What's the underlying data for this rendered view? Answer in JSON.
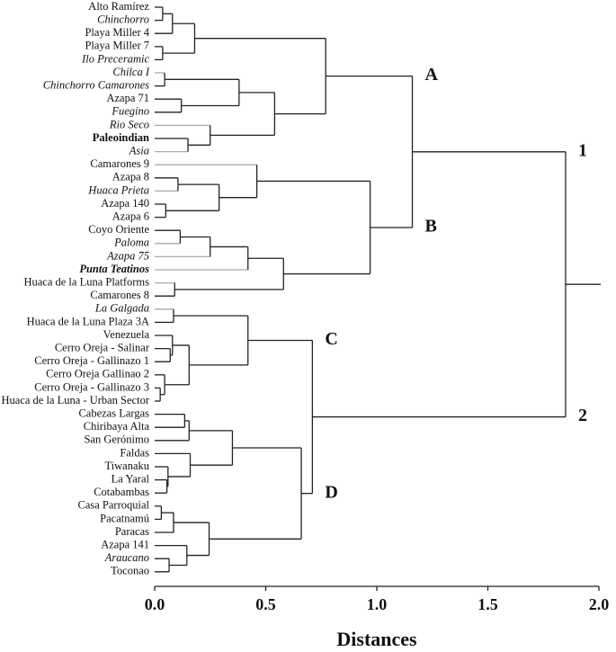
{
  "chart_data": {
    "type": "dendrogram",
    "xlabel": "Distances",
    "xlim": [
      0,
      2
    ],
    "xticks": [
      {
        "value": 0,
        "label": "0.0"
      },
      {
        "value": 0.5,
        "label": "0.5"
      },
      {
        "value": 1,
        "label": "1.0"
      },
      {
        "value": 1.5,
        "label": "1.5"
      },
      {
        "value": 2,
        "label": "2.0"
      }
    ],
    "line_color": "#222",
    "light_line_color": "#aaa",
    "tree": {
      "height": 1.85,
      "children": [
        {
          "cluster": "1",
          "height": 1.16,
          "children": [
            {
              "cluster": "A",
              "height": 0.77,
              "children": [
                {
                  "height": 0.18,
                  "children": [
                    {
                      "height": 0.08,
                      "children": [
                        {
                          "height": 0.036,
                          "children": [
                            {
                              "label": "Alto Ramírez"
                            },
                            {
                              "label": "Chinchorro",
                              "italic": true
                            }
                          ]
                        },
                        {
                          "label": "Playa Miller 4"
                        }
                      ]
                    },
                    {
                      "height": 0.036,
                      "children": [
                        {
                          "label": "Playa Miller 7"
                        },
                        {
                          "label": "Ilo Preceramic",
                          "italic": true
                        }
                      ]
                    }
                  ]
                },
                {
                  "height": 0.54,
                  "children": [
                    {
                      "height": 0.38,
                      "children": [
                        {
                          "height": 0.045,
                          "children": [
                            {
                              "label": "Chilca I",
                              "italic": true,
                              "gray": true
                            },
                            {
                              "label": "Chinchorro Camarones",
                              "italic": true
                            }
                          ]
                        },
                        {
                          "height": 0.12,
                          "children": [
                            {
                              "label": "Azapa 71"
                            },
                            {
                              "label": "Fuegino",
                              "italic": true
                            }
                          ]
                        }
                      ]
                    },
                    {
                      "height": 0.25,
                      "children": [
                        {
                          "label": "Rio Seco",
                          "italic": true,
                          "gray": true
                        },
                        {
                          "height": 0.15,
                          "children": [
                            {
                              "label": "Paleoindian",
                              "bold": true
                            },
                            {
                              "label": "Asia",
                              "italic": true,
                              "gray": true
                            }
                          ]
                        }
                      ]
                    }
                  ]
                }
              ]
            },
            {
              "cluster": "B",
              "height": 0.97,
              "children": [
                {
                  "height": 0.46,
                  "children": [
                    {
                      "label": "Camarones 9",
                      "gray": true
                    },
                    {
                      "height": 0.29,
                      "children": [
                        {
                          "height": 0.105,
                          "children": [
                            {
                              "label": "Azapa 8"
                            },
                            {
                              "label": "Huaca Prieta",
                              "italic": true,
                              "gray": true
                            }
                          ]
                        },
                        {
                          "height": 0.05,
                          "children": [
                            {
                              "label": "Azapa 140"
                            },
                            {
                              "label": "Azapa 6"
                            }
                          ]
                        }
                      ]
                    }
                  ]
                },
                {
                  "height": 0.58,
                  "children": [
                    {
                      "height": 0.42,
                      "children": [
                        {
                          "height": 0.25,
                          "children": [
                            {
                              "height": 0.115,
                              "children": [
                                {
                                  "label": "Coyo Oriente"
                                },
                                {
                                  "label": "Paloma",
                                  "italic": true,
                                  "gray": true
                                }
                              ]
                            },
                            {
                              "label": "Azapa 75",
                              "italic": true,
                              "gray": true
                            }
                          ]
                        },
                        {
                          "label": "Punta Teatinos",
                          "italic": true,
                          "bold": true,
                          "gray": true
                        }
                      ]
                    },
                    {
                      "height": 0.09,
                      "children": [
                        {
                          "label": "Huaca de la Luna Platforms",
                          "gray": true
                        },
                        {
                          "label": "Camarones 8"
                        }
                      ]
                    }
                  ]
                }
              ]
            }
          ]
        },
        {
          "cluster": "2",
          "height": 0.71,
          "children": [
            {
              "cluster": "C",
              "height": 0.42,
              "children": [
                {
                  "height": 0.085,
                  "children": [
                    {
                      "label": "La Galgada",
                      "italic": true,
                      "gray": true
                    },
                    {
                      "label": "Huaca de la Luna Plaza 3A"
                    }
                  ]
                },
                {
                  "height": 0.155,
                  "children": [
                    {
                      "height": 0.08,
                      "children": [
                        {
                          "label": "Venezuela"
                        },
                        {
                          "height": 0.07,
                          "children": [
                            {
                              "label": "Cerro Oreja - Salinar"
                            },
                            {
                              "label": "Cerro Oreja - Gallinazo 1"
                            }
                          ]
                        }
                      ]
                    },
                    {
                      "height": 0.045,
                      "children": [
                        {
                          "label": "Cerro Oreja Gallinao 2"
                        },
                        {
                          "height": 0.025,
                          "children": [
                            {
                              "label": "Cerro Oreja - Gallinazo 3"
                            },
                            {
                              "label": "Huaca de la Luna - Urban Sector"
                            }
                          ]
                        }
                      ]
                    }
                  ]
                }
              ]
            },
            {
              "cluster": "D",
              "height": 0.66,
              "children": [
                {
                  "height": 0.35,
                  "children": [
                    {
                      "height": 0.155,
                      "children": [
                        {
                          "height": 0.135,
                          "children": [
                            {
                              "label": "Cabezas Largas"
                            },
                            {
                              "label": "Chiribaya Alta"
                            }
                          ]
                        },
                        {
                          "label": "San Gerónimo"
                        }
                      ]
                    },
                    {
                      "height": 0.16,
                      "children": [
                        {
                          "label": "Faldas"
                        },
                        {
                          "height": 0.06,
                          "children": [
                            {
                              "label": "Tiwanaku"
                            },
                            {
                              "height": 0.055,
                              "children": [
                                {
                                  "label": "La Yaral"
                                },
                                {
                                  "label": "Cotabambas"
                                }
                              ]
                            }
                          ]
                        }
                      ]
                    }
                  ]
                },
                {
                  "height": 0.245,
                  "children": [
                    {
                      "height": 0.085,
                      "children": [
                        {
                          "height": 0.03,
                          "children": [
                            {
                              "label": "Casa Parroquial"
                            },
                            {
                              "label": "Pacatnamú"
                            }
                          ]
                        },
                        {
                          "label": "Paracas"
                        }
                      ]
                    },
                    {
                      "height": 0.145,
                      "children": [
                        {
                          "label": "Azapa 141"
                        },
                        {
                          "height": 0.065,
                          "children": [
                            {
                              "label": "Araucano",
                              "italic": true
                            },
                            {
                              "label": "Toconao"
                            }
                          ]
                        }
                      ]
                    }
                  ]
                }
              ]
            }
          ]
        }
      ]
    }
  }
}
